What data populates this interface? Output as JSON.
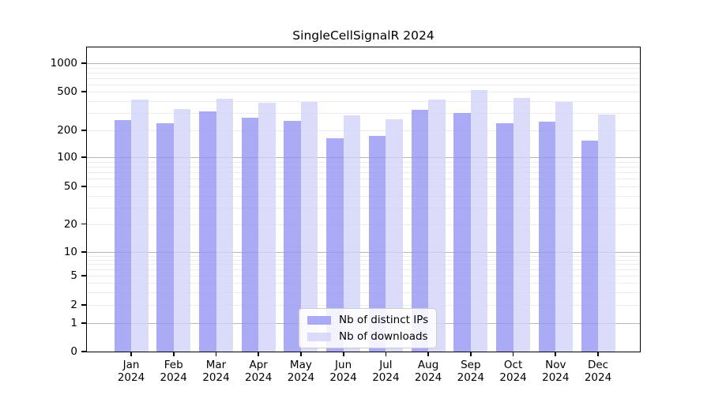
{
  "chart_data": {
    "type": "bar",
    "title": "SingleCellSignalR 2024",
    "categories": [
      "Jan",
      "Feb",
      "Mar",
      "Apr",
      "May",
      "Jun",
      "Jul",
      "Aug",
      "Sep",
      "Oct",
      "Nov",
      "Dec"
    ],
    "year": "2024",
    "series": [
      {
        "name": "Nb of distinct IPs",
        "fill": "rgba(147,147,242,0.78)",
        "perceived_color": "#abability",
        "values": [
          255,
          235,
          315,
          270,
          250,
          163,
          175,
          325,
          300,
          235,
          245,
          155
        ]
      },
      {
        "name": "Nb of downloads",
        "fill": "rgba(209,209,249,0.78)",
        "perceived_color": "#dbdbfa",
        "values": [
          415,
          330,
          420,
          385,
          395,
          285,
          260,
          415,
          520,
          430,
          395,
          290
        ]
      }
    ],
    "yticks": [
      0,
      1,
      2,
      5,
      10,
      20,
      50,
      100,
      200,
      500,
      1000
    ],
    "xlabel": "",
    "ylabel": "",
    "scale": "log above 1, linear 0-1 (symlog)",
    "ylim": [
      0,
      1400
    ],
    "grid": "horizontal",
    "legend_position": "lower center",
    "colors": {
      "distinct_ips": "#ababf5",
      "downloads": "#dbdbfa",
      "axis": "#000000",
      "major_grid": "#b6b6b6",
      "minor_grid": "#ececec",
      "background": "#ffffff"
    }
  }
}
